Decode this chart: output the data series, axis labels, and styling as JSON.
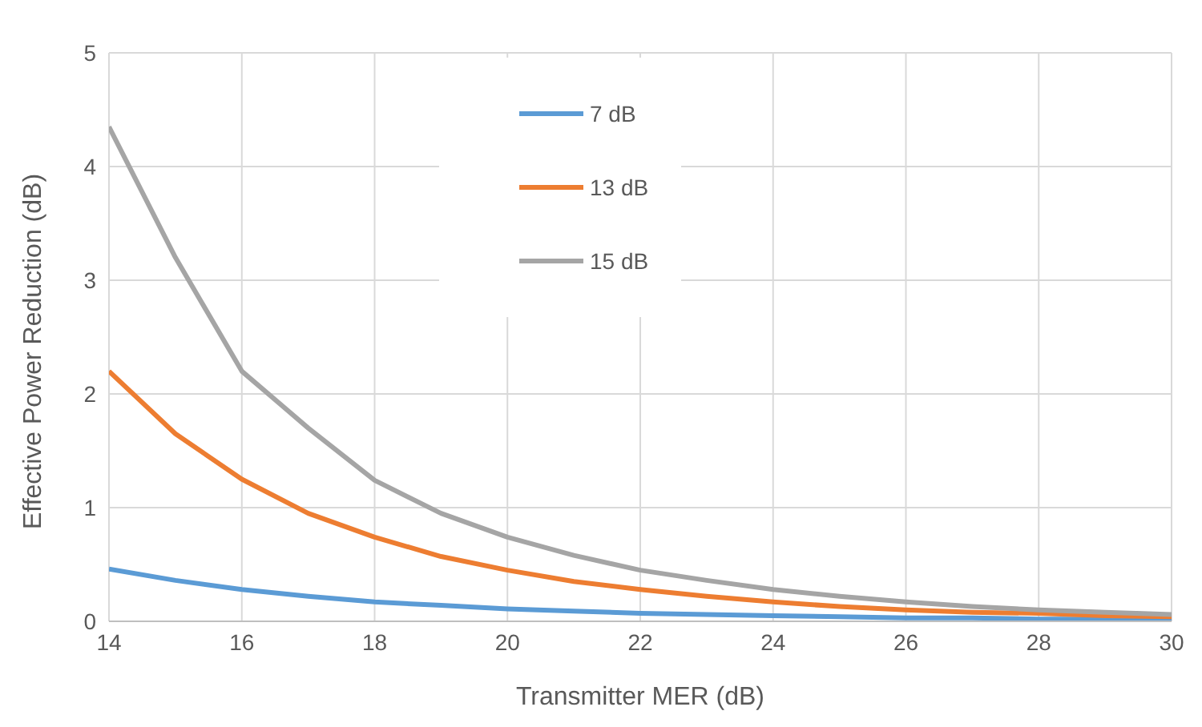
{
  "chart_data": {
    "type": "line",
    "xlabel": "Transmitter MER (dB)",
    "ylabel": "Effective Power Reduction (dB)",
    "x": [
      14,
      15,
      16,
      17,
      18,
      19,
      20,
      21,
      22,
      23,
      24,
      25,
      26,
      27,
      28,
      29,
      30
    ],
    "series": [
      {
        "name": "7 dB",
        "color": "#5b9bd5",
        "values": [
          0.46,
          0.36,
          0.28,
          0.22,
          0.17,
          0.14,
          0.11,
          0.09,
          0.07,
          0.06,
          0.05,
          0.04,
          0.03,
          0.03,
          0.02,
          0.02,
          0.01
        ]
      },
      {
        "name": "13 dB",
        "color": "#ed7d31",
        "values": [
          2.2,
          1.65,
          1.25,
          0.95,
          0.74,
          0.57,
          0.45,
          0.35,
          0.28,
          0.22,
          0.17,
          0.13,
          0.1,
          0.08,
          0.07,
          0.05,
          0.04
        ]
      },
      {
        "name": "15 dB",
        "color": "#a5a5a5",
        "values": [
          4.35,
          3.2,
          2.2,
          1.7,
          1.24,
          0.95,
          0.74,
          0.58,
          0.45,
          0.36,
          0.28,
          0.22,
          0.17,
          0.13,
          0.1,
          0.08,
          0.06
        ]
      }
    ],
    "xlim": [
      14,
      30
    ],
    "xticks": [
      14,
      16,
      18,
      20,
      22,
      24,
      26,
      28,
      30
    ],
    "ylim": [
      0,
      5
    ],
    "yticks": [
      0,
      1,
      2,
      3,
      4,
      5
    ],
    "grid": true,
    "legend": "top",
    "marker": "none",
    "line_style": "solid"
  }
}
